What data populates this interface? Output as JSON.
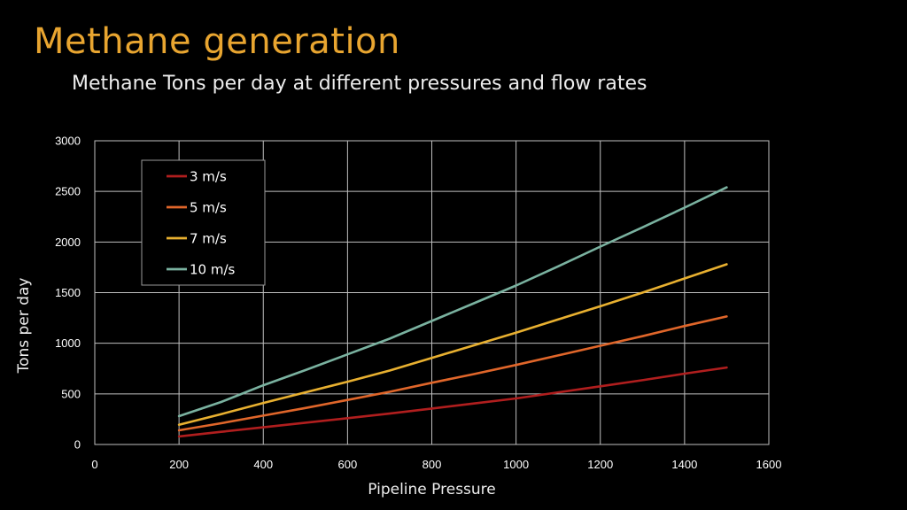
{
  "slide": {
    "title": "Methane generation",
    "subtitle": "Methane Tons per day at different pressures and flow rates"
  },
  "chart_data": {
    "type": "line",
    "xlabel": "Pipeline Pressure",
    "ylabel": "Tons per day",
    "xlim": [
      0,
      1600
    ],
    "ylim": [
      0,
      3000
    ],
    "x_ticks": [
      0,
      200,
      400,
      600,
      800,
      1000,
      1200,
      1400,
      1600
    ],
    "y_ticks": [
      0,
      500,
      1000,
      1500,
      2000,
      2500,
      3000
    ],
    "grid": true,
    "legend_position": "top-left",
    "x": [
      200,
      300,
      400,
      500,
      600,
      700,
      800,
      900,
      1000,
      1100,
      1200,
      1300,
      1400,
      1500
    ],
    "series": [
      {
        "name": "3 m/s",
        "color": "#b01e1e",
        "values": [
          80,
          125,
          170,
          215,
          260,
          305,
          355,
          405,
          455,
          515,
          575,
          635,
          700,
          760
        ]
      },
      {
        "name": "5 m/s",
        "color": "#e0662a",
        "values": [
          140,
          210,
          285,
          360,
          440,
          520,
          610,
          695,
          785,
          880,
          975,
          1070,
          1170,
          1265
        ]
      },
      {
        "name": "7 m/s",
        "color": "#e8b030",
        "values": [
          195,
          300,
          410,
          515,
          620,
          730,
          855,
          980,
          1105,
          1235,
          1365,
          1500,
          1640,
          1780
        ]
      },
      {
        "name": "10 m/s",
        "color": "#7ab2a0",
        "values": [
          280,
          420,
          585,
          735,
          890,
          1045,
          1220,
          1395,
          1570,
          1760,
          1955,
          2145,
          2340,
          2540
        ]
      }
    ]
  }
}
